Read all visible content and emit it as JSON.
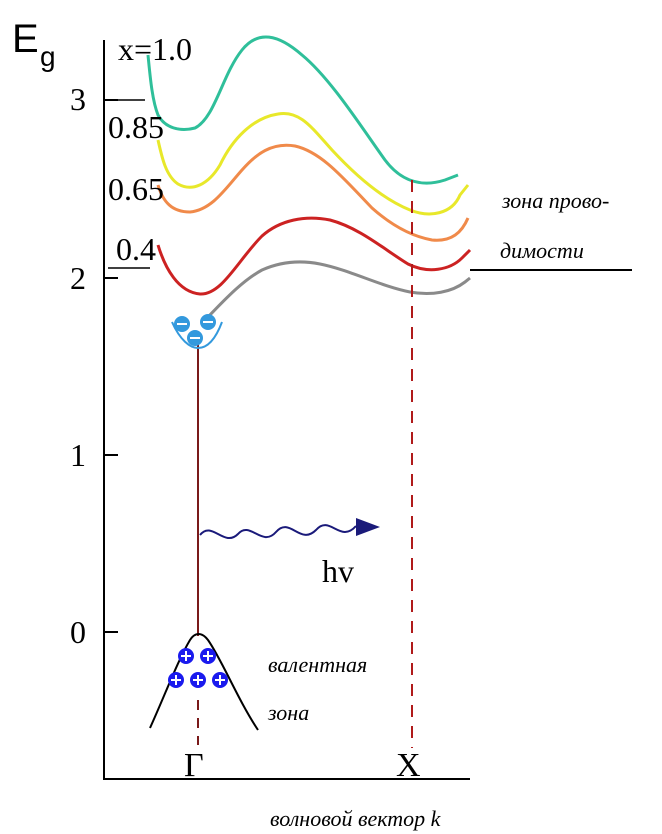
{
  "axis": {
    "y_title": "E",
    "y_title_sub": "g",
    "x_title": "волновой вектор k",
    "y_ticks": [
      "3",
      "2",
      "1",
      "0"
    ],
    "x_points": [
      "Γ",
      "X"
    ]
  },
  "curves": [
    {
      "label": "x=1.0",
      "color": "#2fbf9a"
    },
    {
      "label": "0.85",
      "color": "#e8e82a"
    },
    {
      "label": "0.65",
      "color": "#f08a4a"
    },
    {
      "label": "0.4",
      "color": "#cc2222"
    },
    {
      "label": "",
      "color": "#8a8a8a"
    }
  ],
  "annotations": {
    "conduction_band_line1": "зона прово-",
    "conduction_band_line2": "димости",
    "valence_band_line1": "валентная",
    "valence_band_line2": "зона",
    "photon": "hv"
  },
  "colors": {
    "electron": "#3399dd",
    "hole": "#1a1aee",
    "photon": "#1a1a7a",
    "transition": "#7a1a1a"
  }
}
